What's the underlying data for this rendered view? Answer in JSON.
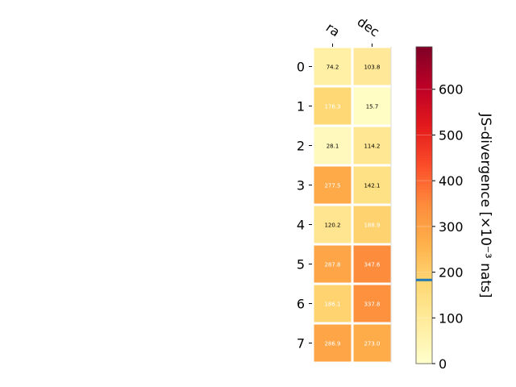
{
  "chart_data": {
    "type": "heatmap",
    "columns": [
      "ra",
      "dec"
    ],
    "rows": [
      "0",
      "1",
      "2",
      "3",
      "4",
      "5",
      "6",
      "7"
    ],
    "values": [
      [
        74.2,
        103.8
      ],
      [
        176.3,
        15.7
      ],
      [
        28.1,
        114.2
      ],
      [
        277.5,
        142.1
      ],
      [
        120.2,
        188.9
      ],
      [
        287.8,
        347.6
      ],
      [
        186.1,
        337.8
      ],
      [
        286.9,
        273.0
      ]
    ],
    "cell_labels": [
      [
        "74.2",
        "103.8"
      ],
      [
        "176.3",
        "15.7"
      ],
      [
        "28.1",
        "114.2"
      ],
      [
        "277.5",
        "142.1"
      ],
      [
        "120.2",
        "188.9"
      ],
      [
        "287.8",
        "347.6"
      ],
      [
        "186.1",
        "337.8"
      ],
      [
        "286.9",
        "273.0"
      ]
    ],
    "colormap": "YlOrRd",
    "colorbar": {
      "label": "JS-divergence [×10⁻³ nats]",
      "range": [
        0,
        693
      ],
      "ticks": [
        0,
        100,
        200,
        300,
        400,
        500,
        600
      ],
      "tick_labels": [
        "0",
        "100",
        "200",
        "300",
        "400",
        "500",
        "600"
      ],
      "marker_value": 183,
      "marker_color": "#1f77b4"
    },
    "grid": false
  }
}
